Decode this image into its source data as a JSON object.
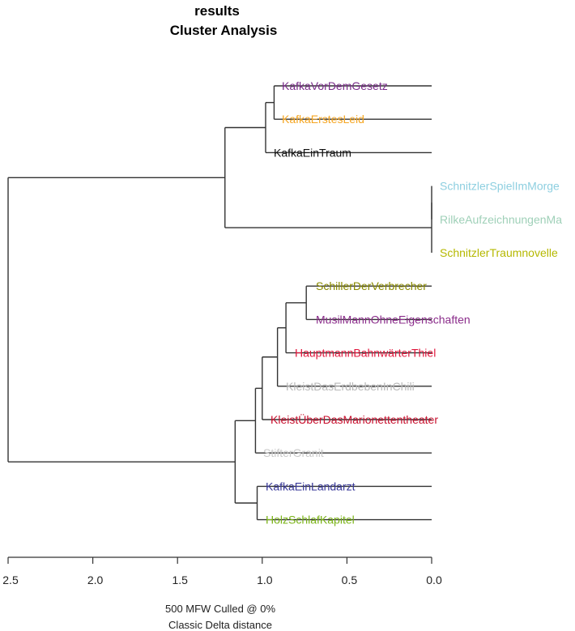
{
  "chart_data": {
    "type": "dendrogram",
    "title": "results",
    "subtitle": "Cluster Analysis",
    "xlabel_line1": "500 MFW  Culled @ 0%",
    "xlabel_line2": "Classic Delta distance",
    "xlim": [
      2.5,
      0.0
    ],
    "x_ticks": [
      "2.5",
      "2.0",
      "1.5",
      "1.0",
      "0.5",
      "0.0"
    ],
    "x_tick_values": [
      2.5,
      2.0,
      1.5,
      1.0,
      0.5,
      0.0
    ],
    "leaves": [
      {
        "label": "KafkaVorDemGesetz",
        "color": "#7b2d8b"
      },
      {
        "label": "KafkaErstesLeid",
        "color": "#f5a623"
      },
      {
        "label": "KafkaEinTraum",
        "color": "#111111"
      },
      {
        "label": "SchnitzlerSpielImMorge",
        "color": "#8ecfe0"
      },
      {
        "label": "RilkeAufzeichnungenMa",
        "color": "#9fd0b8"
      },
      {
        "label": "SchnitzlerTraumnovelle",
        "color": "#b5b800"
      },
      {
        "label": "SchillerDerVerbrecher",
        "color": "#8a8a00"
      },
      {
        "label": "MusilMannOhneEigenschaften",
        "color": "#8b2d8b"
      },
      {
        "label": "HauptmannBahnwärterThiel",
        "color": "#e0163c"
      },
      {
        "label": "KleistDasErdbebenInChili",
        "color": "#b8b8b8"
      },
      {
        "label": "KleistÜberDasMarionettentheater",
        "color": "#c8102e"
      },
      {
        "label": "StifterGranit",
        "color": "#c9c9c9"
      },
      {
        "label": "KafkaEinLandarzt",
        "color": "#3a3a9a"
      },
      {
        "label": "HolzSchlafKapitel",
        "color": "#7ab317"
      }
    ],
    "merges": [
      {
        "id": "m1",
        "children": [
          "L0",
          "L1"
        ],
        "height": 0.93
      },
      {
        "id": "m2",
        "children": [
          "m1",
          "L2"
        ],
        "height": 0.98
      },
      {
        "id": "m3",
        "children": [
          "L3",
          "L4"
        ],
        "height": 0.0
      },
      {
        "id": "m4",
        "children": [
          "m3",
          "L5"
        ],
        "height": 0.0
      },
      {
        "id": "m5",
        "children": [
          "m2",
          "m4"
        ],
        "height": 1.22
      },
      {
        "id": "m6",
        "children": [
          "L6",
          "L7"
        ],
        "height": 0.74
      },
      {
        "id": "m7",
        "children": [
          "m6",
          "L8"
        ],
        "height": 0.86
      },
      {
        "id": "m8",
        "children": [
          "m7",
          "L9"
        ],
        "height": 0.91
      },
      {
        "id": "m9",
        "children": [
          "m8",
          "L10"
        ],
        "height": 1.0
      },
      {
        "id": "m10",
        "children": [
          "m9",
          "L11"
        ],
        "height": 1.04
      },
      {
        "id": "m11",
        "children": [
          "L12",
          "L13"
        ],
        "height": 1.03
      },
      {
        "id": "m12",
        "children": [
          "m10",
          "m11"
        ],
        "height": 1.16
      },
      {
        "id": "m13",
        "children": [
          "m5",
          "m12"
        ],
        "height": 2.5
      }
    ]
  }
}
